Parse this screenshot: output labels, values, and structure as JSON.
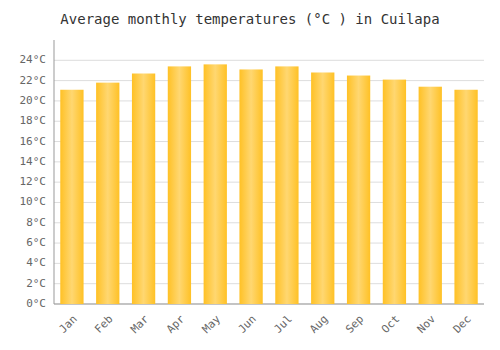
{
  "chart_data": {
    "type": "bar",
    "title": "Average monthly temperatures (°C ) in Cuilapa",
    "categories": [
      "Jan",
      "Feb",
      "Mar",
      "Apr",
      "May",
      "Jun",
      "Jul",
      "Aug",
      "Sep",
      "Oct",
      "Nov",
      "Dec"
    ],
    "values": [
      21.1,
      21.8,
      22.7,
      23.4,
      23.6,
      23.1,
      23.4,
      22.8,
      22.5,
      22.1,
      21.4,
      21.1
    ],
    "color": "#FFC125",
    "ylim": [
      0,
      26
    ],
    "yticks": [
      {
        "value": 0,
        "label": "0°C"
      },
      {
        "value": 2,
        "label": "2°C"
      },
      {
        "value": 4,
        "label": "4°C"
      },
      {
        "value": 6,
        "label": "6°C"
      },
      {
        "value": 8,
        "label": "8°C"
      },
      {
        "value": 10,
        "label": "10°C"
      },
      {
        "value": 12,
        "label": "12°C"
      },
      {
        "value": 14,
        "label": "14°C"
      },
      {
        "value": 16,
        "label": "16°C"
      },
      {
        "value": 18,
        "label": "18°C"
      },
      {
        "value": 20,
        "label": "20°C"
      },
      {
        "value": 22,
        "label": "22°C"
      },
      {
        "value": 24,
        "label": "24°C"
      }
    ],
    "grid": true
  }
}
